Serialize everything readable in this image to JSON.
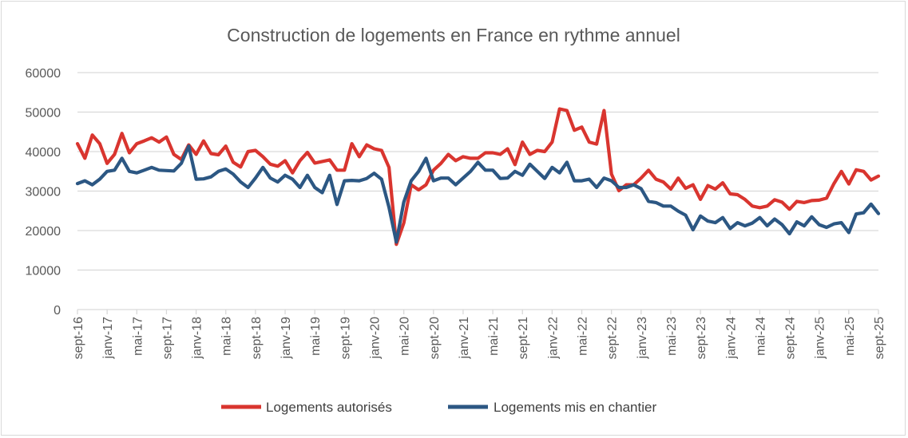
{
  "chart_data": {
    "type": "line",
    "title": "Construction de logements en France en rythme annuel",
    "xlabel": "",
    "ylabel": "",
    "ylim": [
      0,
      60000
    ],
    "yticks": [
      0,
      10000,
      20000,
      30000,
      40000,
      50000,
      60000
    ],
    "grid": true,
    "legend_position": "bottom",
    "categories": [
      "sept-16",
      "oct-16",
      "nov-16",
      "déc-16",
      "janv-17",
      "févr-17",
      "mars-17",
      "avr-17",
      "mai-17",
      "juin-17",
      "juil-17",
      "août-17",
      "sept-17",
      "oct-17",
      "nov-17",
      "déc-17",
      "janv-18",
      "févr-18",
      "mars-18",
      "avr-18",
      "mai-18",
      "juin-18",
      "juil-18",
      "août-18",
      "sept-18",
      "oct-18",
      "nov-18",
      "déc-18",
      "janv-19",
      "févr-19",
      "mars-19",
      "avr-19",
      "mai-19",
      "juin-19",
      "juil-19",
      "août-19",
      "sept-19",
      "oct-19",
      "nov-19",
      "déc-19",
      "janv-20",
      "févr-20",
      "mars-20",
      "avr-20",
      "mai-20",
      "juin-20",
      "juil-20",
      "août-20",
      "sept-20",
      "oct-20",
      "nov-20",
      "déc-20",
      "janv-21",
      "févr-21",
      "mars-21",
      "avr-21",
      "mai-21",
      "juin-21",
      "juil-21",
      "août-21",
      "sept-21",
      "oct-21",
      "nov-21",
      "déc-21",
      "janv-22",
      "févr-22",
      "mars-22",
      "avr-22",
      "mai-22",
      "juin-22",
      "juil-22",
      "août-22",
      "sept-22",
      "oct-22",
      "nov-22",
      "déc-22",
      "janv-23",
      "févr-23",
      "mars-23",
      "avr-23",
      "mai-23",
      "juin-23",
      "juil-23",
      "août-23",
      "sept-23",
      "oct-23",
      "nov-23",
      "déc-23",
      "janv-24",
      "févr-24",
      "mars-24",
      "avr-24",
      "mai-24",
      "juin-24",
      "juil-24",
      "août-24",
      "sept-24",
      "oct-24",
      "nov-24",
      "déc-24",
      "janv-25",
      "févr-25",
      "mars-25",
      "avr-25",
      "mai-25",
      "juin-25",
      "juil-25",
      "août-25",
      "sept-25"
    ],
    "xtick_labels": [
      "sept-16",
      "janv-17",
      "mai-17",
      "sept-17",
      "janv-18",
      "mai-18",
      "sept-18",
      "janv-19",
      "mai-19",
      "sept-19",
      "janv-20",
      "mai-20",
      "sept-20",
      "janv-21",
      "mai-21",
      "sept-21",
      "janv-22",
      "mai-22",
      "sept-22",
      "janv-23",
      "mai-23",
      "sept-23",
      "janv-24",
      "mai-24",
      "sept-24",
      "janv-25",
      "mai-25",
      "sept-25"
    ],
    "series": [
      {
        "name": "Logements autorisés",
        "color": "#d9352f",
        "values": [
          42000,
          38300,
          44200,
          42000,
          37000,
          39300,
          44600,
          39700,
          42000,
          42700,
          43500,
          42400,
          43700,
          39300,
          38000,
          41700,
          39300,
          42700,
          39500,
          39200,
          41400,
          37300,
          36100,
          40000,
          40300,
          38700,
          36800,
          36300,
          37700,
          34600,
          37700,
          39800,
          37100,
          37500,
          37900,
          35300,
          35300,
          42000,
          38700,
          41700,
          40700,
          40300,
          36000,
          16500,
          21900,
          31600,
          30300,
          31600,
          35300,
          37000,
          39300,
          37700,
          38700,
          38300,
          38300,
          39700,
          39700,
          39300,
          40700,
          36700,
          42400,
          39300,
          40300,
          40000,
          42400,
          50800,
          50400,
          45400,
          46200,
          42400,
          41900,
          50400,
          34300,
          30100,
          31600,
          31600,
          33300,
          35300,
          33000,
          32300,
          30500,
          33300,
          30700,
          31600,
          27900,
          31400,
          30500,
          32100,
          29300,
          29100,
          27900,
          26200,
          25800,
          26200,
          27800,
          27200,
          25400,
          27400,
          27100,
          27600,
          27700,
          28200,
          31900,
          35000,
          31800,
          35400,
          35000,
          32800,
          33800
        ]
      },
      {
        "name": "Logements mis en chantier",
        "color": "#2c5783",
        "values": [
          31900,
          32600,
          31600,
          33000,
          35000,
          35300,
          38300,
          35000,
          34600,
          35300,
          36000,
          35300,
          35200,
          35100,
          37000,
          41400,
          33000,
          33100,
          33600,
          35000,
          35600,
          34300,
          32300,
          30900,
          33300,
          36000,
          33300,
          32300,
          34000,
          33000,
          30900,
          34000,
          30900,
          29600,
          34000,
          26600,
          32600,
          32700,
          32600,
          33200,
          34500,
          33000,
          25900,
          17100,
          27200,
          32600,
          35000,
          38300,
          32600,
          33300,
          33300,
          31600,
          33300,
          35000,
          37300,
          35300,
          35300,
          33200,
          33300,
          35000,
          34000,
          36800,
          35000,
          33200,
          36000,
          34600,
          37300,
          32600,
          32600,
          33000,
          30900,
          33300,
          32600,
          30900,
          30900,
          31600,
          30600,
          27400,
          27100,
          26200,
          26200,
          24900,
          23900,
          20200,
          23700,
          22400,
          22000,
          23300,
          20500,
          22000,
          21200,
          21900,
          23300,
          21200,
          22900,
          21500,
          19200,
          22200,
          21200,
          23500,
          21500,
          20800,
          21700,
          22000,
          19500,
          24200,
          24500,
          26700,
          24300
        ]
      }
    ]
  }
}
